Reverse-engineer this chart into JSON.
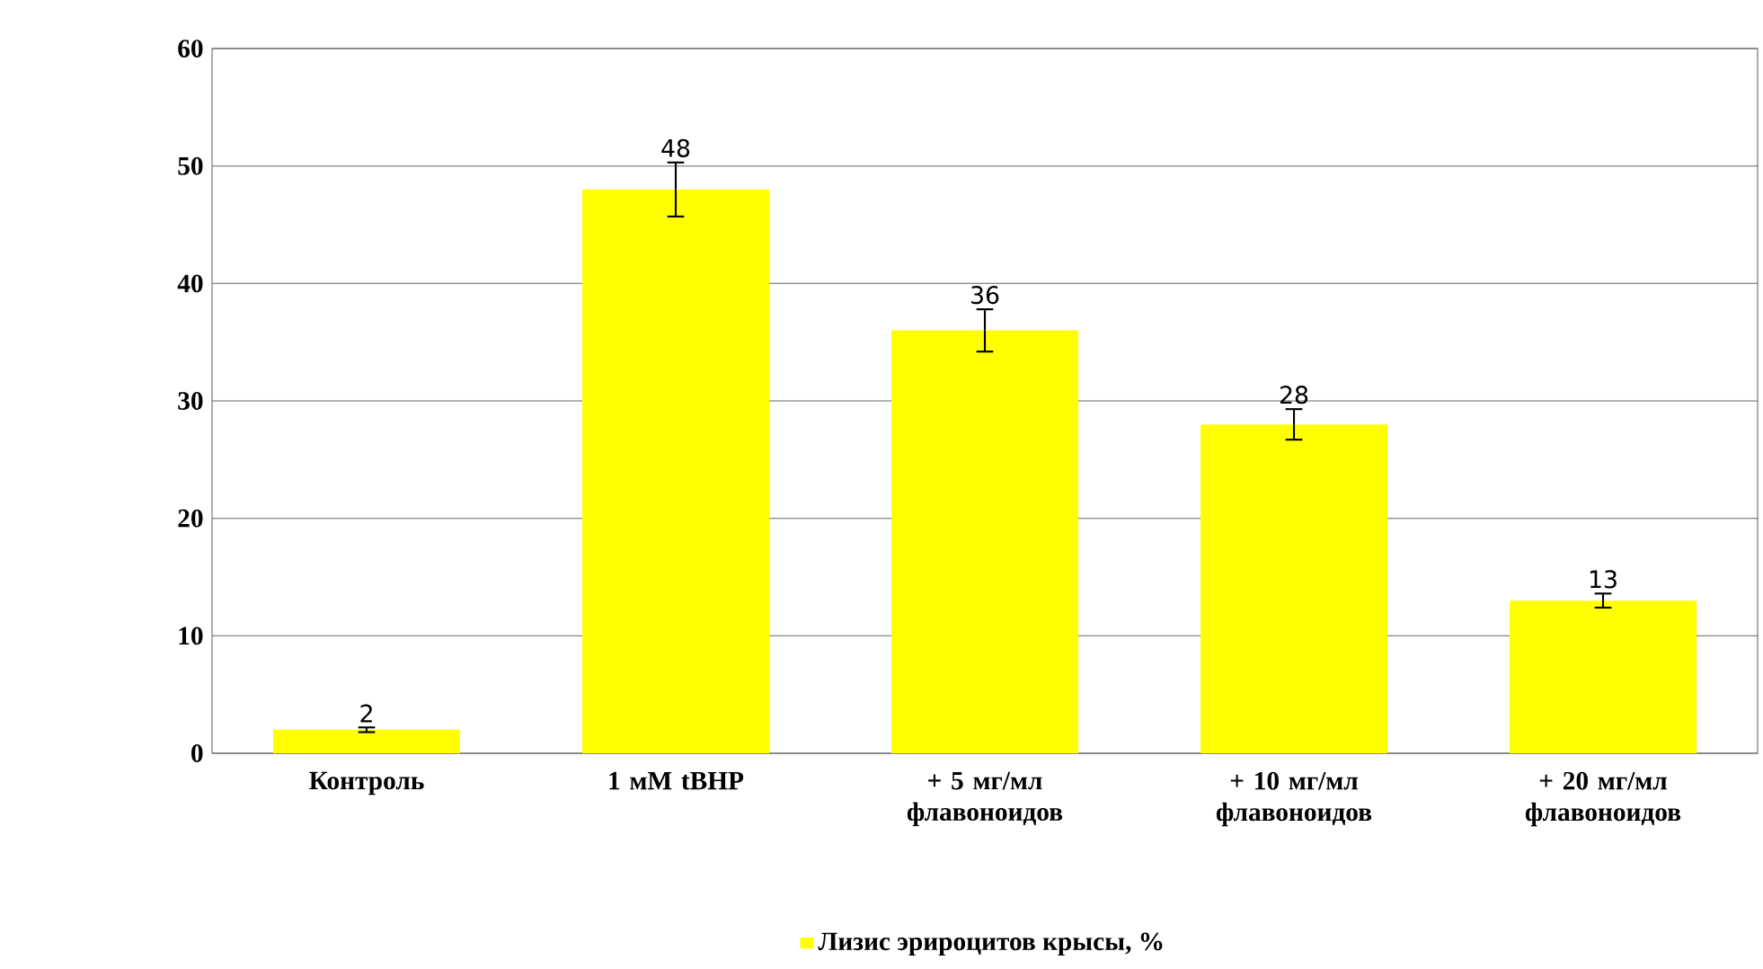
{
  "chart_data": {
    "type": "bar",
    "categories": [
      "Контроль",
      "1 мМ tBHP",
      "+ 5 мг/мл флавоноидов",
      "+ 10 мг/мл флавоноидов",
      "+ 20 мг/мл флавоноидов"
    ],
    "series": [
      {
        "name": "Лизис эрироцитов крысы, %",
        "color": "#ffff00",
        "values": [
          2,
          48,
          36,
          28,
          13
        ],
        "errors": [
          0.2,
          2.3,
          1.8,
          1.3,
          0.6
        ]
      }
    ],
    "ylim": [
      0,
      60
    ],
    "yticks": [
      0,
      10,
      20,
      30,
      40,
      50,
      60
    ],
    "grid": "y",
    "legend": "bottom",
    "data_labels": true
  }
}
